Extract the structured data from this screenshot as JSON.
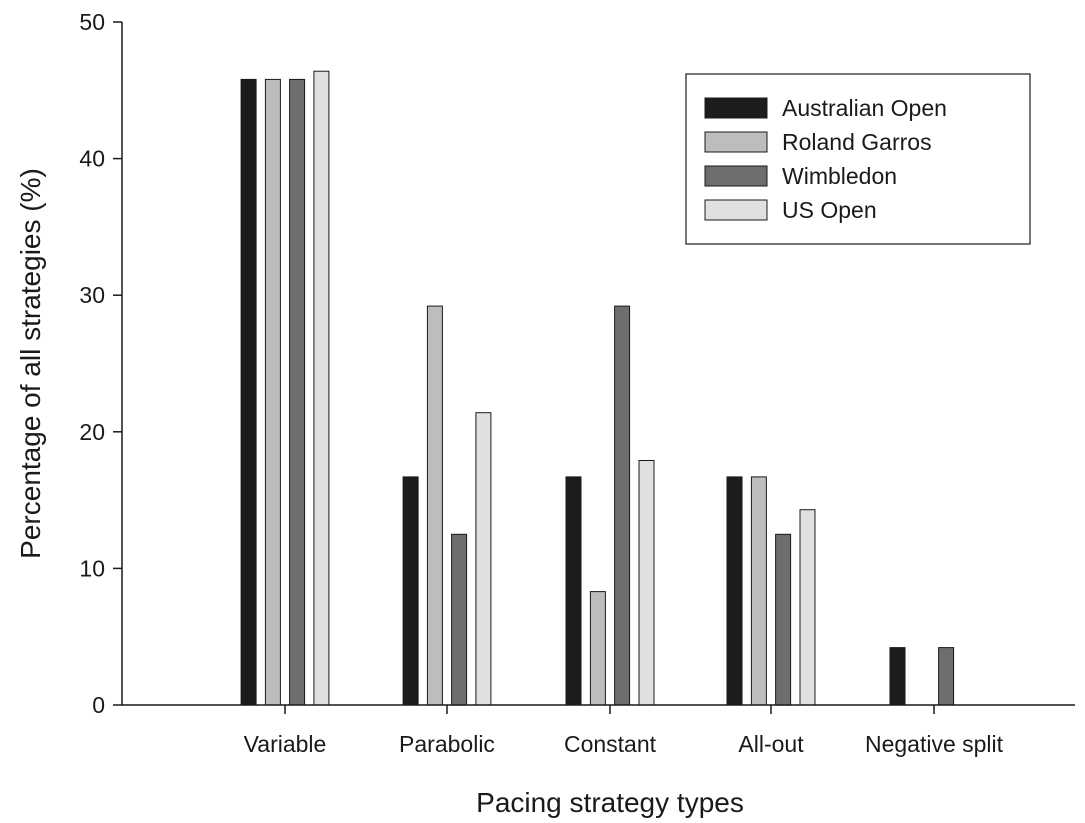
{
  "chart_data": {
    "type": "bar",
    "title": "",
    "xlabel": "Pacing strategy types",
    "ylabel": "Percentage of all strategies (%)",
    "ylim": [
      0,
      50
    ],
    "yticks": [
      "0",
      "10",
      "20",
      "30",
      "40",
      "50"
    ],
    "categories": [
      "Variable",
      "Parabolic",
      "Constant",
      "All-out",
      "Negative split"
    ],
    "series": [
      {
        "name": "Australian Open",
        "color": "#1c1c1c",
        "values": [
          45.8,
          16.7,
          16.7,
          16.7,
          4.2
        ]
      },
      {
        "name": "Roland Garros",
        "color": "#bdbdbd",
        "values": [
          45.8,
          29.2,
          8.3,
          16.7,
          0
        ]
      },
      {
        "name": "Wimbledon",
        "color": "#6e6e6e",
        "values": [
          45.8,
          12.5,
          29.2,
          12.5,
          4.2
        ]
      },
      {
        "name": "US Open",
        "color": "#e0e0e0",
        "values": [
          46.4,
          21.4,
          17.9,
          14.3,
          0
        ]
      }
    ],
    "legend_position": "top-right",
    "grid": false
  }
}
